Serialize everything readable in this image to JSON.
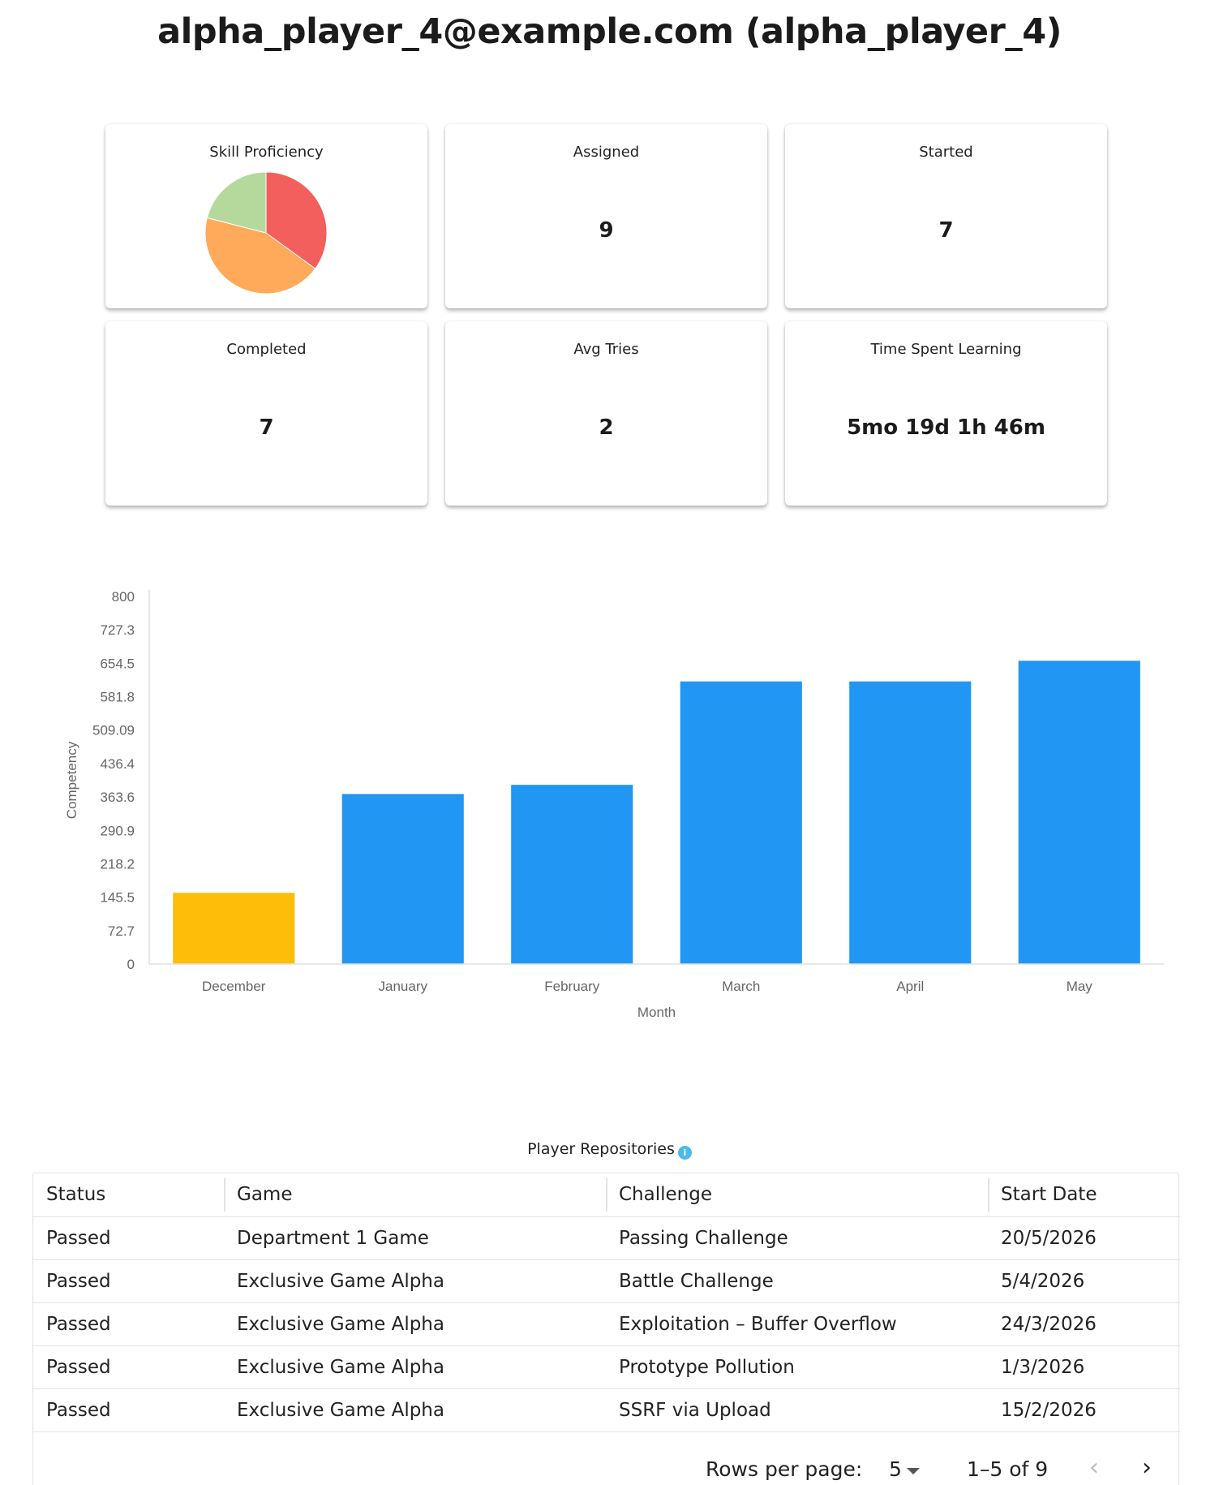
{
  "header": {
    "title": "alpha_player_4@example.com (alpha_player_4)"
  },
  "cards": {
    "skill": {
      "label": "Skill Proficiency",
      "slices": [
        {
          "value": 35,
          "color": "#f25f5c"
        },
        {
          "value": 44,
          "color": "#ffaa5a"
        },
        {
          "value": 21,
          "color": "#b5d99c"
        }
      ]
    },
    "assigned": {
      "label": "Assigned",
      "value": "9"
    },
    "started": {
      "label": "Started",
      "value": "7"
    },
    "completed": {
      "label": "Completed",
      "value": "7"
    },
    "avg_tries": {
      "label": "Avg Tries",
      "value": "2"
    },
    "time_spent": {
      "label": "Time Spent Learning",
      "value": "5mo 19d 1h 46m"
    }
  },
  "chart_data": {
    "type": "bar",
    "categories": [
      "December",
      "January",
      "February",
      "March",
      "April",
      "May"
    ],
    "values": [
      155,
      370,
      390,
      615,
      615,
      660
    ],
    "colors": [
      "#fdbd08",
      "#2196f3",
      "#2196f3",
      "#2196f3",
      "#2196f3",
      "#2196f3"
    ],
    "xlabel": "Month",
    "ylabel": "Competency",
    "ylim": [
      0,
      800
    ],
    "yticks": [
      "0",
      "72.7",
      "145.5",
      "218.2",
      "290.9",
      "363.6",
      "436.4",
      "509.09",
      "581.8",
      "654.5",
      "727.3",
      "800"
    ],
    "grid": false,
    "legend": "none"
  },
  "repositories": {
    "title": "Player Repositories",
    "info_icon": "info-icon",
    "columns": [
      "Status",
      "Game",
      "Challenge",
      "Start Date"
    ],
    "rows": [
      [
        "Passed",
        "Department 1 Game",
        "Passing Challenge",
        "20/5/2026"
      ],
      [
        "Passed",
        "Exclusive Game Alpha",
        "Battle Challenge",
        "5/4/2026"
      ],
      [
        "Passed",
        "Exclusive Game Alpha",
        "Exploitation – Buffer Overflow",
        "24/3/2026"
      ],
      [
        "Passed",
        "Exclusive Game Alpha",
        "Prototype Pollution",
        "1/3/2026"
      ],
      [
        "Passed",
        "Exclusive Game Alpha",
        "SSRF via Upload",
        "15/2/2026"
      ]
    ],
    "pagination": {
      "rows_per_page_label": "Rows per page:",
      "rows_per_page_value": "5",
      "range": "1–5 of 9"
    }
  }
}
